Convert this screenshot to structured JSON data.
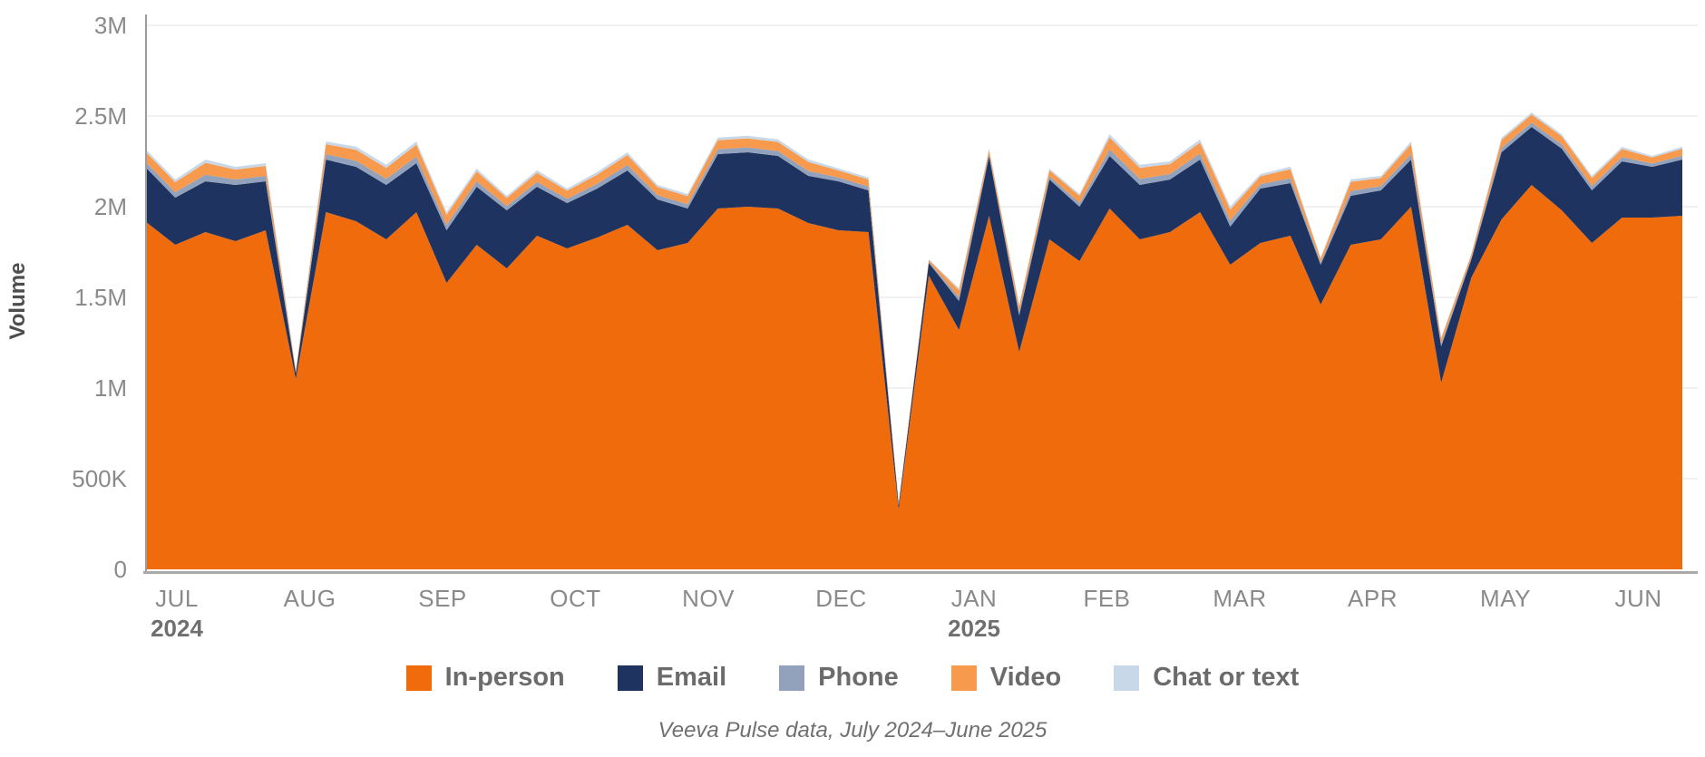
{
  "figure": {
    "y_axis_title": "Volume",
    "caption": "Veeva Pulse data, July 2024–June 2025"
  },
  "chart_data": {
    "type": "area",
    "stacked": true,
    "title": "",
    "ylabel": "Volume",
    "xlabel": "",
    "values_unit": "millions",
    "x_unit": "week",
    "points": 52,
    "ylim": [
      0,
      3
    ],
    "grid": "horizontal",
    "legend_position": "bottom",
    "y_ticks": [
      {
        "value": 0,
        "label": "0"
      },
      {
        "value": 0.5,
        "label": "500K"
      },
      {
        "value": 1,
        "label": "1M"
      },
      {
        "value": 1.5,
        "label": "1.5M"
      },
      {
        "value": 2,
        "label": "2M"
      },
      {
        "value": 2.5,
        "label": "2.5M"
      },
      {
        "value": 3,
        "label": "3M"
      }
    ],
    "x_ticks": [
      {
        "label": "JUL",
        "sub": "2024"
      },
      {
        "label": "AUG"
      },
      {
        "label": "SEP"
      },
      {
        "label": "OCT"
      },
      {
        "label": "NOV"
      },
      {
        "label": "DEC"
      },
      {
        "label": "JAN",
        "sub": "2025"
      },
      {
        "label": "FEB"
      },
      {
        "label": "MAR"
      },
      {
        "label": "APR"
      },
      {
        "label": "MAY"
      },
      {
        "label": "JUN"
      }
    ],
    "series": [
      {
        "name": "In-person",
        "color": "#F06B0C",
        "values": [
          1.92,
          1.79,
          1.86,
          1.81,
          1.87,
          1.05,
          1.97,
          1.92,
          1.82,
          1.97,
          1.58,
          1.79,
          1.66,
          1.84,
          1.77,
          1.83,
          1.9,
          1.76,
          1.8,
          1.99,
          2.0,
          1.99,
          1.91,
          1.87,
          1.86,
          0.33,
          1.62,
          1.32,
          1.95,
          1.2,
          1.82,
          1.7,
          1.99,
          1.82,
          1.86,
          1.97,
          1.68,
          1.8,
          1.84,
          1.46,
          1.79,
          1.82,
          2.0,
          1.03,
          1.61,
          1.93,
          2.12,
          1.98,
          1.8,
          1.94,
          1.94,
          1.95
        ]
      },
      {
        "name": "Email",
        "color": "#1E335F",
        "values": [
          0.3,
          0.26,
          0.28,
          0.31,
          0.27,
          0.03,
          0.29,
          0.3,
          0.3,
          0.27,
          0.29,
          0.32,
          0.32,
          0.27,
          0.25,
          0.27,
          0.3,
          0.28,
          0.19,
          0.3,
          0.3,
          0.29,
          0.26,
          0.27,
          0.23,
          0.025,
          0.07,
          0.16,
          0.33,
          0.2,
          0.33,
          0.3,
          0.29,
          0.3,
          0.29,
          0.29,
          0.21,
          0.3,
          0.29,
          0.22,
          0.27,
          0.27,
          0.26,
          0.2,
          0.1,
          0.37,
          0.32,
          0.34,
          0.29,
          0.31,
          0.28,
          0.31
        ]
      },
      {
        "name": "Phone",
        "color": "#93A2BC",
        "values": [
          0.03,
          0.03,
          0.036,
          0.03,
          0.03,
          0.006,
          0.03,
          0.033,
          0.033,
          0.036,
          0.03,
          0.03,
          0.024,
          0.027,
          0.024,
          0.027,
          0.03,
          0.024,
          0.024,
          0.027,
          0.027,
          0.027,
          0.027,
          0.021,
          0.021,
          0.005,
          0.006,
          0.021,
          0.012,
          0.018,
          0.018,
          0.021,
          0.036,
          0.033,
          0.03,
          0.033,
          0.033,
          0.024,
          0.027,
          0.012,
          0.027,
          0.024,
          0.03,
          0.015,
          0.009,
          0.024,
          0.024,
          0.024,
          0.024,
          0.024,
          0.018,
          0.021
        ]
      },
      {
        "name": "Video",
        "color": "#F79A4D",
        "values": [
          0.055,
          0.055,
          0.066,
          0.055,
          0.055,
          0.011,
          0.055,
          0.061,
          0.061,
          0.066,
          0.055,
          0.055,
          0.044,
          0.05,
          0.044,
          0.05,
          0.055,
          0.044,
          0.044,
          0.05,
          0.05,
          0.05,
          0.05,
          0.039,
          0.039,
          0.008,
          0.011,
          0.039,
          0.022,
          0.033,
          0.033,
          0.039,
          0.066,
          0.061,
          0.055,
          0.061,
          0.061,
          0.044,
          0.05,
          0.022,
          0.05,
          0.044,
          0.055,
          0.028,
          0.017,
          0.044,
          0.044,
          0.044,
          0.044,
          0.044,
          0.033,
          0.039
        ]
      },
      {
        "name": "Chat or text",
        "color": "#C9D8E8",
        "values": [
          0.015,
          0.015,
          0.018,
          0.015,
          0.015,
          0.003,
          0.015,
          0.017,
          0.017,
          0.018,
          0.015,
          0.015,
          0.012,
          0.014,
          0.012,
          0.014,
          0.015,
          0.012,
          0.012,
          0.014,
          0.014,
          0.014,
          0.014,
          0.011,
          0.011,
          0.002,
          0.003,
          0.011,
          0.006,
          0.009,
          0.009,
          0.011,
          0.018,
          0.017,
          0.015,
          0.017,
          0.017,
          0.012,
          0.014,
          0.006,
          0.014,
          0.012,
          0.015,
          0.008,
          0.005,
          0.012,
          0.012,
          0.012,
          0.012,
          0.012,
          0.009,
          0.011
        ]
      }
    ],
    "style": {
      "axis_line_color": "#9C9C9C",
      "baseline_color": "#A9A9A9",
      "gridline_color": "#F1F1F1",
      "tick_label_color": "#8A8A8A",
      "year_label_color": "#6F6F6F",
      "axis_title_color": "#4D4D4D"
    }
  }
}
